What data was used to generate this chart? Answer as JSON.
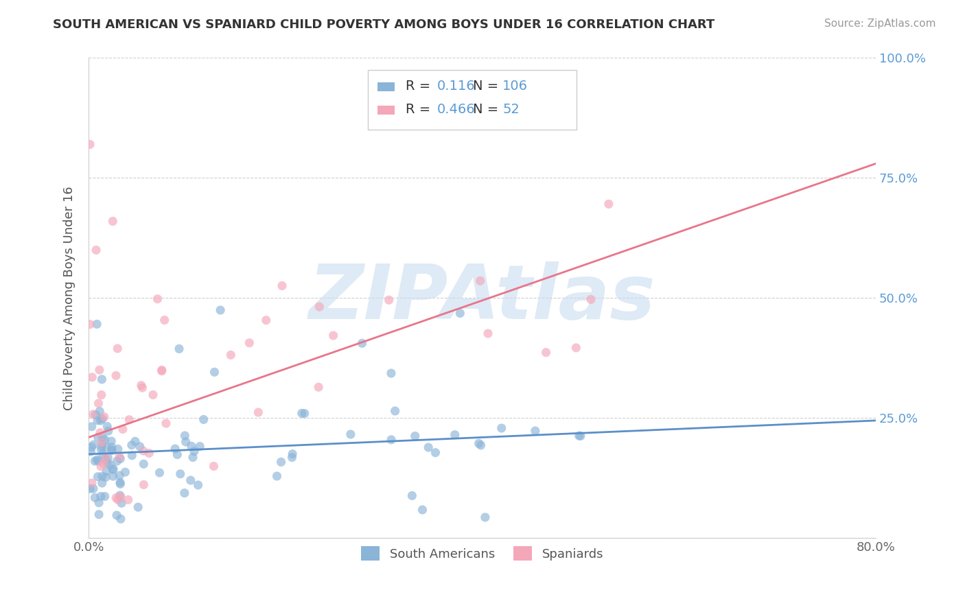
{
  "title": "SOUTH AMERICAN VS SPANIARD CHILD POVERTY AMONG BOYS UNDER 16 CORRELATION CHART",
  "source": "Source: ZipAtlas.com",
  "ylabel": "Child Poverty Among Boys Under 16",
  "xlim": [
    0.0,
    0.8
  ],
  "ylim": [
    0.0,
    1.0
  ],
  "ytick_positions": [
    0.0,
    0.25,
    0.5,
    0.75,
    1.0
  ],
  "yticklabels": [
    "",
    "25.0%",
    "50.0%",
    "75.0%",
    "100.0%"
  ],
  "legend_R1": "0.116",
  "legend_N1": "106",
  "legend_R2": "0.466",
  "legend_N2": "52",
  "blue_color": "#8ab4d8",
  "pink_color": "#f4a7b9",
  "blue_line_color": "#5b8fc9",
  "pink_line_color": "#e8758a",
  "watermark": "ZIPAtlas",
  "watermark_color": "#c8ddef",
  "blue_line_x0": 0.0,
  "blue_line_y0": 0.175,
  "blue_line_x1": 0.8,
  "blue_line_y1": 0.245,
  "pink_line_x0": 0.0,
  "pink_line_y0": 0.21,
  "pink_line_x1": 0.8,
  "pink_line_y1": 0.78
}
